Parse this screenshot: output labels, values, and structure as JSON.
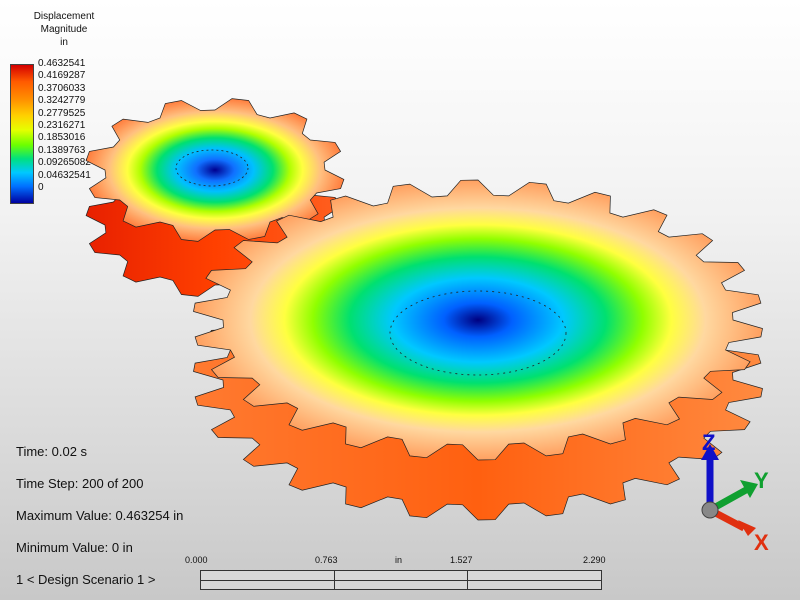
{
  "legend": {
    "title": [
      "Displacement",
      "Magnitude",
      "in"
    ],
    "ticks": [
      "0.4632541",
      "0.4169287",
      "0.3706033",
      "0.3242779",
      "0.2779525",
      "0.2316271",
      "0.1853016",
      "0.1389763",
      "0.09265082",
      "0.04632541",
      "0"
    ]
  },
  "info": {
    "time": "Time: 0.02 s",
    "time_step": "Time Step:  200 of 200",
    "max_value": "Maximum Value: 0.463254 in",
    "min_value": "Minimum Value: 0 in",
    "scenario": "1 < Design Scenario 1 >"
  },
  "scale": {
    "labels": [
      "0.000",
      "0.763",
      "in",
      "1.527",
      "2.290"
    ]
  },
  "triad": {
    "z": "Z",
    "y": "Y",
    "x": "X"
  },
  "colors": {
    "gear_side": "#ff6a1a",
    "z_axis": "#1010c8",
    "y_axis": "#10a030",
    "x_axis": "#e03010"
  }
}
